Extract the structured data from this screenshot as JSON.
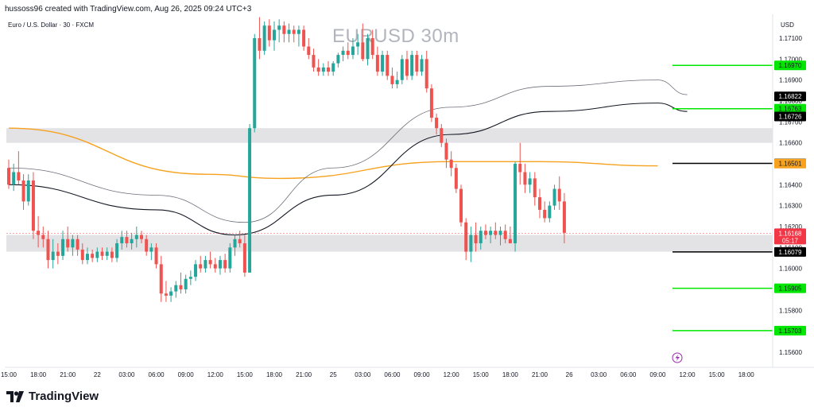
{
  "header": {
    "creator_text": "hussoss96 created with TradingView.com, Aug 26, 2025 09:24 UTC+3"
  },
  "symbol": {
    "description": "Euro / U.S. Dollar · 30 · FXCM"
  },
  "watermark": {
    "text": "EURUSD 30m"
  },
  "axis": {
    "currency_label": "USD"
  },
  "footer": {
    "brand": "TradingView"
  },
  "colors": {
    "up": "#26a69a",
    "down": "#ef5350",
    "zone": "#d9dadd",
    "ema_orange": "#f6a21e",
    "level_green": "#00e600",
    "level_black": "#000000",
    "line_dark": "#131722",
    "line_light": "#6b6f78",
    "current_price": "#f23645"
  },
  "chart_data": {
    "type": "candlestick",
    "title": "EURUSD 30m",
    "ylabel": "USD",
    "ylim": [
      1.1553,
      1.1722
    ],
    "y_ticks": [
      1.171,
      1.17,
      1.169,
      1.168,
      1.167,
      1.166,
      1.165,
      1.164,
      1.163,
      1.162,
      1.161,
      1.16,
      1.159,
      1.158,
      1.157,
      1.156
    ],
    "y_tick_labels": [
      "1.17100",
      "1.17000",
      "1.16900",
      "1.16800",
      "1.16700",
      "1.16600",
      "1.16500",
      "1.16400",
      "1.16300",
      "1.16200",
      "1.16100",
      "1.16000",
      "1.15900",
      "1.15800",
      "1.15700",
      "1.15600"
    ],
    "x_ticks": [
      {
        "label": "15:00",
        "i": 0
      },
      {
        "label": "18:00",
        "i": 6
      },
      {
        "label": "21:00",
        "i": 12
      },
      {
        "label": "22",
        "i": 18
      },
      {
        "label": "03:00",
        "i": 24
      },
      {
        "label": "06:00",
        "i": 30
      },
      {
        "label": "09:00",
        "i": 36
      },
      {
        "label": "12:00",
        "i": 42
      },
      {
        "label": "15:00",
        "i": 48
      },
      {
        "label": "18:00",
        "i": 54
      },
      {
        "label": "21:00",
        "i": 60
      },
      {
        "label": "25",
        "i": 66
      },
      {
        "label": "03:00",
        "i": 72
      },
      {
        "label": "06:00",
        "i": 78
      },
      {
        "label": "09:00",
        "i": 84
      },
      {
        "label": "12:00",
        "i": 90
      },
      {
        "label": "15:00",
        "i": 96
      },
      {
        "label": "18:00",
        "i": 102
      },
      {
        "label": "21:00",
        "i": 108
      },
      {
        "label": "26",
        "i": 114
      },
      {
        "label": "03:00",
        "i": 120
      },
      {
        "label": "06:00",
        "i": 126
      },
      {
        "label": "09:00",
        "i": 132
      },
      {
        "label": "12:00",
        "i": 138
      },
      {
        "label": "15:00",
        "i": 144
      },
      {
        "label": "18:00",
        "i": 150
      }
    ],
    "candles": [
      [
        1.1648,
        1.1652,
        1.1638,
        1.164
      ],
      [
        1.164,
        1.165,
        1.1637,
        1.1646
      ],
      [
        1.1646,
        1.1656,
        1.164,
        1.1642
      ],
      [
        1.1642,
        1.1645,
        1.1628,
        1.1632
      ],
      [
        1.1632,
        1.1645,
        1.163,
        1.1642
      ],
      [
        1.1642,
        1.1646,
        1.1614,
        1.1618
      ],
      [
        1.1618,
        1.1625,
        1.161,
        1.1616
      ],
      [
        1.1616,
        1.162,
        1.161,
        1.1614
      ],
      [
        1.1614,
        1.1618,
        1.16,
        1.1604
      ],
      [
        1.1604,
        1.1614,
        1.16,
        1.1608
      ],
      [
        1.1608,
        1.1612,
        1.1602,
        1.1606
      ],
      [
        1.1606,
        1.1618,
        1.1604,
        1.1614
      ],
      [
        1.1614,
        1.162,
        1.1608,
        1.161
      ],
      [
        1.161,
        1.1616,
        1.1606,
        1.1614
      ],
      [
        1.1614,
        1.1616,
        1.1606,
        1.1609
      ],
      [
        1.1609,
        1.1612,
        1.1602,
        1.1604
      ],
      [
        1.1604,
        1.161,
        1.1602,
        1.1607
      ],
      [
        1.1607,
        1.1609,
        1.1603,
        1.1605
      ],
      [
        1.1605,
        1.161,
        1.1603,
        1.1608
      ],
      [
        1.1608,
        1.161,
        1.1604,
        1.1606
      ],
      [
        1.1606,
        1.161,
        1.1604,
        1.1608
      ],
      [
        1.1608,
        1.161,
        1.1603,
        1.1605
      ],
      [
        1.1605,
        1.1614,
        1.1603,
        1.1612
      ],
      [
        1.1612,
        1.1618,
        1.1609,
        1.1615
      ],
      [
        1.1615,
        1.1618,
        1.161,
        1.1612
      ],
      [
        1.1612,
        1.1617,
        1.1609,
        1.1614
      ],
      [
        1.1614,
        1.162,
        1.161,
        1.1616
      ],
      [
        1.1616,
        1.1618,
        1.1612,
        1.1614
      ],
      [
        1.1614,
        1.1616,
        1.1606,
        1.1608
      ],
      [
        1.1608,
        1.1612,
        1.1604,
        1.161
      ],
      [
        1.161,
        1.1612,
        1.16,
        1.1602
      ],
      [
        1.1602,
        1.1606,
        1.1584,
        1.1588
      ],
      [
        1.1588,
        1.1594,
        1.1584,
        1.1587
      ],
      [
        1.1587,
        1.1591,
        1.1584,
        1.1589
      ],
      [
        1.1589,
        1.1594,
        1.1586,
        1.1592
      ],
      [
        1.1592,
        1.1598,
        1.1588,
        1.159
      ],
      [
        1.159,
        1.1597,
        1.1588,
        1.1595
      ],
      [
        1.1595,
        1.1599,
        1.1592,
        1.1596
      ],
      [
        1.1596,
        1.1604,
        1.1594,
        1.1602
      ],
      [
        1.1602,
        1.1606,
        1.1598,
        1.16
      ],
      [
        1.16,
        1.1606,
        1.1598,
        1.1604
      ],
      [
        1.1604,
        1.1608,
        1.16,
        1.1602
      ],
      [
        1.1602,
        1.1605,
        1.1598,
        1.16
      ],
      [
        1.16,
        1.1606,
        1.1597,
        1.1604
      ],
      [
        1.1604,
        1.1607,
        1.1598,
        1.16
      ],
      [
        1.16,
        1.1612,
        1.1598,
        1.161
      ],
      [
        1.161,
        1.1616,
        1.1606,
        1.1614
      ],
      [
        1.1614,
        1.1618,
        1.161,
        1.1612
      ],
      [
        1.1612,
        1.1616,
        1.1596,
        1.1598
      ],
      [
        1.1598,
        1.1669,
        1.1598,
        1.1667
      ],
      [
        1.1667,
        1.1712,
        1.1665,
        1.171
      ],
      [
        1.171,
        1.172,
        1.17,
        1.1704
      ],
      [
        1.1704,
        1.1718,
        1.1702,
        1.1716
      ],
      [
        1.1716,
        1.1719,
        1.1706,
        1.1709
      ],
      [
        1.1709,
        1.1718,
        1.1704,
        1.1714
      ],
      [
        1.1714,
        1.1719,
        1.1708,
        1.1716
      ],
      [
        1.1716,
        1.1718,
        1.1708,
        1.1712
      ],
      [
        1.1712,
        1.1717,
        1.1708,
        1.1714
      ],
      [
        1.1714,
        1.1716,
        1.1708,
        1.1712
      ],
      [
        1.1712,
        1.1716,
        1.1706,
        1.1714
      ],
      [
        1.1714,
        1.1716,
        1.1704,
        1.1706
      ],
      [
        1.1706,
        1.171,
        1.17,
        1.1702
      ],
      [
        1.1702,
        1.1705,
        1.1694,
        1.1696
      ],
      [
        1.1696,
        1.17,
        1.1692,
        1.1694
      ],
      [
        1.1694,
        1.1698,
        1.1692,
        1.1696
      ],
      [
        1.1696,
        1.1699,
        1.1692,
        1.1694
      ],
      [
        1.1694,
        1.1699,
        1.1692,
        1.1698
      ],
      [
        1.1698,
        1.1703,
        1.1696,
        1.1702
      ],
      [
        1.1702,
        1.1706,
        1.1699,
        1.1704
      ],
      [
        1.1704,
        1.1708,
        1.17,
        1.1702
      ],
      [
        1.1702,
        1.171,
        1.17,
        1.1706
      ],
      [
        1.1706,
        1.1712,
        1.1702,
        1.1708
      ],
      [
        1.1708,
        1.1717,
        1.1699,
        1.17
      ],
      [
        1.17,
        1.1712,
        1.1697,
        1.171
      ],
      [
        1.171,
        1.1714,
        1.17,
        1.1702
      ],
      [
        1.1702,
        1.1706,
        1.1692,
        1.1694
      ],
      [
        1.1694,
        1.1704,
        1.1692,
        1.1702
      ],
      [
        1.1702,
        1.1704,
        1.169,
        1.1692
      ],
      [
        1.1692,
        1.1696,
        1.1686,
        1.1688
      ],
      [
        1.1688,
        1.1694,
        1.1686,
        1.169
      ],
      [
        1.169,
        1.1702,
        1.1688,
        1.17
      ],
      [
        1.17,
        1.1704,
        1.169,
        1.1692
      ],
      [
        1.1692,
        1.1704,
        1.169,
        1.1702
      ],
      [
        1.1702,
        1.1704,
        1.1692,
        1.1694
      ],
      [
        1.1694,
        1.1702,
        1.1692,
        1.17
      ],
      [
        1.17,
        1.1704,
        1.1684,
        1.1686
      ],
      [
        1.1686,
        1.1688,
        1.167,
        1.1672
      ],
      [
        1.1672,
        1.1674,
        1.1664,
        1.1667
      ],
      [
        1.1667,
        1.1669,
        1.1658,
        1.166
      ],
      [
        1.166,
        1.1662,
        1.1648,
        1.1652
      ],
      [
        1.1652,
        1.1656,
        1.1644,
        1.1648
      ],
      [
        1.1648,
        1.165,
        1.1636,
        1.1638
      ],
      [
        1.1638,
        1.164,
        1.162,
        1.1622
      ],
      [
        1.1622,
        1.1624,
        1.1604,
        1.1608
      ],
      [
        1.1608,
        1.162,
        1.1603,
        1.1616
      ],
      [
        1.1616,
        1.1622,
        1.1608,
        1.1612
      ],
      [
        1.1612,
        1.162,
        1.1609,
        1.1618
      ],
      [
        1.1618,
        1.1621,
        1.1614,
        1.1616
      ],
      [
        1.1616,
        1.162,
        1.1612,
        1.1618
      ],
      [
        1.1618,
        1.1622,
        1.1614,
        1.1616
      ],
      [
        1.1616,
        1.162,
        1.1611,
        1.1618
      ],
      [
        1.1618,
        1.1621,
        1.1612,
        1.1614
      ],
      [
        1.1614,
        1.162,
        1.1612,
        1.1612
      ],
      [
        1.1612,
        1.1651,
        1.1608,
        1.165
      ],
      [
        1.165,
        1.166,
        1.164,
        1.1646
      ],
      [
        1.1646,
        1.165,
        1.1636,
        1.164
      ],
      [
        1.164,
        1.1646,
        1.1636,
        1.1643
      ],
      [
        1.1643,
        1.1646,
        1.163,
        1.1634
      ],
      [
        1.1634,
        1.1638,
        1.1624,
        1.1628
      ],
      [
        1.1628,
        1.1632,
        1.1622,
        1.1624
      ],
      [
        1.1624,
        1.1632,
        1.1622,
        1.163
      ],
      [
        1.163,
        1.164,
        1.1628,
        1.1638
      ],
      [
        1.1638,
        1.1644,
        1.1628,
        1.1632
      ],
      [
        1.1632,
        1.1636,
        1.1612,
        1.1617
      ]
    ],
    "zones": [
      {
        "from": 1.166,
        "to": 1.1667
      },
      {
        "from": 1.1608,
        "to": 1.1616
      }
    ],
    "moving_averages": [
      {
        "color": "orange",
        "points": [
          [
            0,
            1.1667
          ],
          [
            40,
            1.1645
          ],
          [
            55,
            1.1643
          ],
          [
            90,
            1.1651
          ],
          [
            108,
            1.1651
          ],
          [
            132,
            1.1649
          ]
        ]
      },
      {
        "color": "dark",
        "points": [
          [
            0,
            1.164
          ],
          [
            30,
            1.1628
          ],
          [
            46,
            1.1616
          ],
          [
            66,
            1.1635
          ],
          [
            90,
            1.1664
          ],
          [
            110,
            1.1675
          ],
          [
            132,
            1.1679
          ],
          [
            138,
            1.1675
          ]
        ]
      },
      {
        "color": "light",
        "points": [
          [
            0,
            1.1648
          ],
          [
            30,
            1.1635
          ],
          [
            48,
            1.1622
          ],
          [
            66,
            1.1648
          ],
          [
            90,
            1.1677
          ],
          [
            110,
            1.1687
          ],
          [
            132,
            1.169
          ],
          [
            138,
            1.1683
          ]
        ]
      }
    ],
    "horizontal_levels": [
      {
        "value": 1.1697,
        "label": "1.16970",
        "color": "green"
      },
      {
        "value": 1.16763,
        "label": "1.16763",
        "color": "green"
      },
      {
        "value": 1.16502,
        "label": "1.16502",
        "color": "black"
      },
      {
        "value": 1.16079,
        "label": "1.16079",
        "color": "black"
      },
      {
        "value": 1.15905,
        "label": "1.15905",
        "color": "green"
      },
      {
        "value": 1.15703,
        "label": "1.15703",
        "color": "green"
      }
    ],
    "price_tags": [
      {
        "value": 1.16822,
        "label": "1.16822",
        "style": "black"
      },
      {
        "value": 1.16726,
        "label": "1.16726",
        "style": "black"
      },
      {
        "value": 1.16501,
        "label": "1.16501",
        "style": "orange"
      }
    ],
    "current_price": {
      "value": 1.16168,
      "label": "1.16168",
      "countdown": "05:17"
    }
  }
}
